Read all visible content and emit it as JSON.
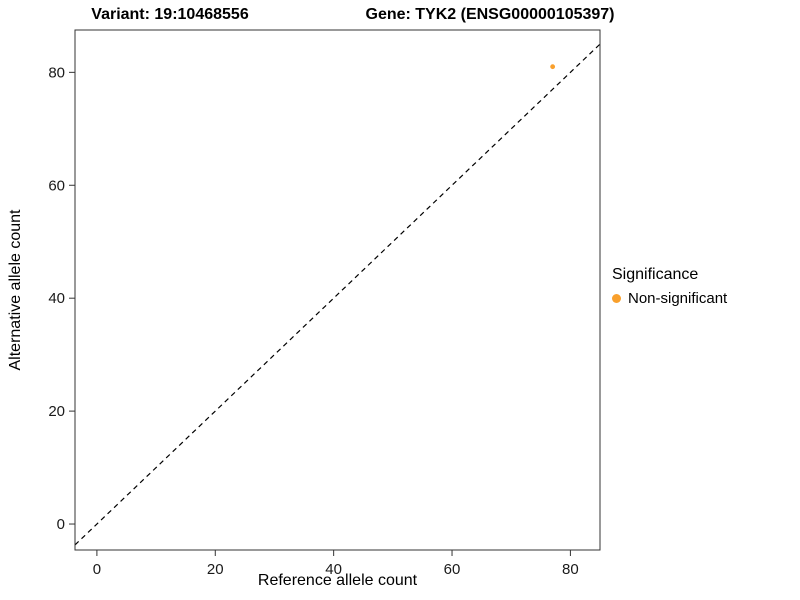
{
  "header": {
    "title_left": "Variant: 19:10468556",
    "title_right": "Gene: TYK2 (ENSG00000105397)"
  },
  "legend": {
    "title": "Significance",
    "items": [
      {
        "label": "Non-significant",
        "color": "#F9A02C"
      }
    ]
  },
  "chart_data": {
    "type": "scatter",
    "title": "Variant: 19:10468556    Gene: TYK2 (ENSG00000105397)",
    "xlabel": "Reference allele count",
    "ylabel": "Alternative allele count",
    "xlim": [
      -3.7,
      85
    ],
    "ylim": [
      -4.6,
      87.5
    ],
    "xticks": [
      0,
      20,
      40,
      60,
      80
    ],
    "yticks": [
      0,
      20,
      40,
      60,
      80
    ],
    "grid": false,
    "legend_position": "right",
    "identity_line": {
      "style": "dashed",
      "color": "#000000",
      "equation": "y = x"
    },
    "series": [
      {
        "name": "Non-significant",
        "color": "#F9A02C",
        "points": [
          {
            "x": 77,
            "y": 81
          }
        ]
      }
    ]
  }
}
